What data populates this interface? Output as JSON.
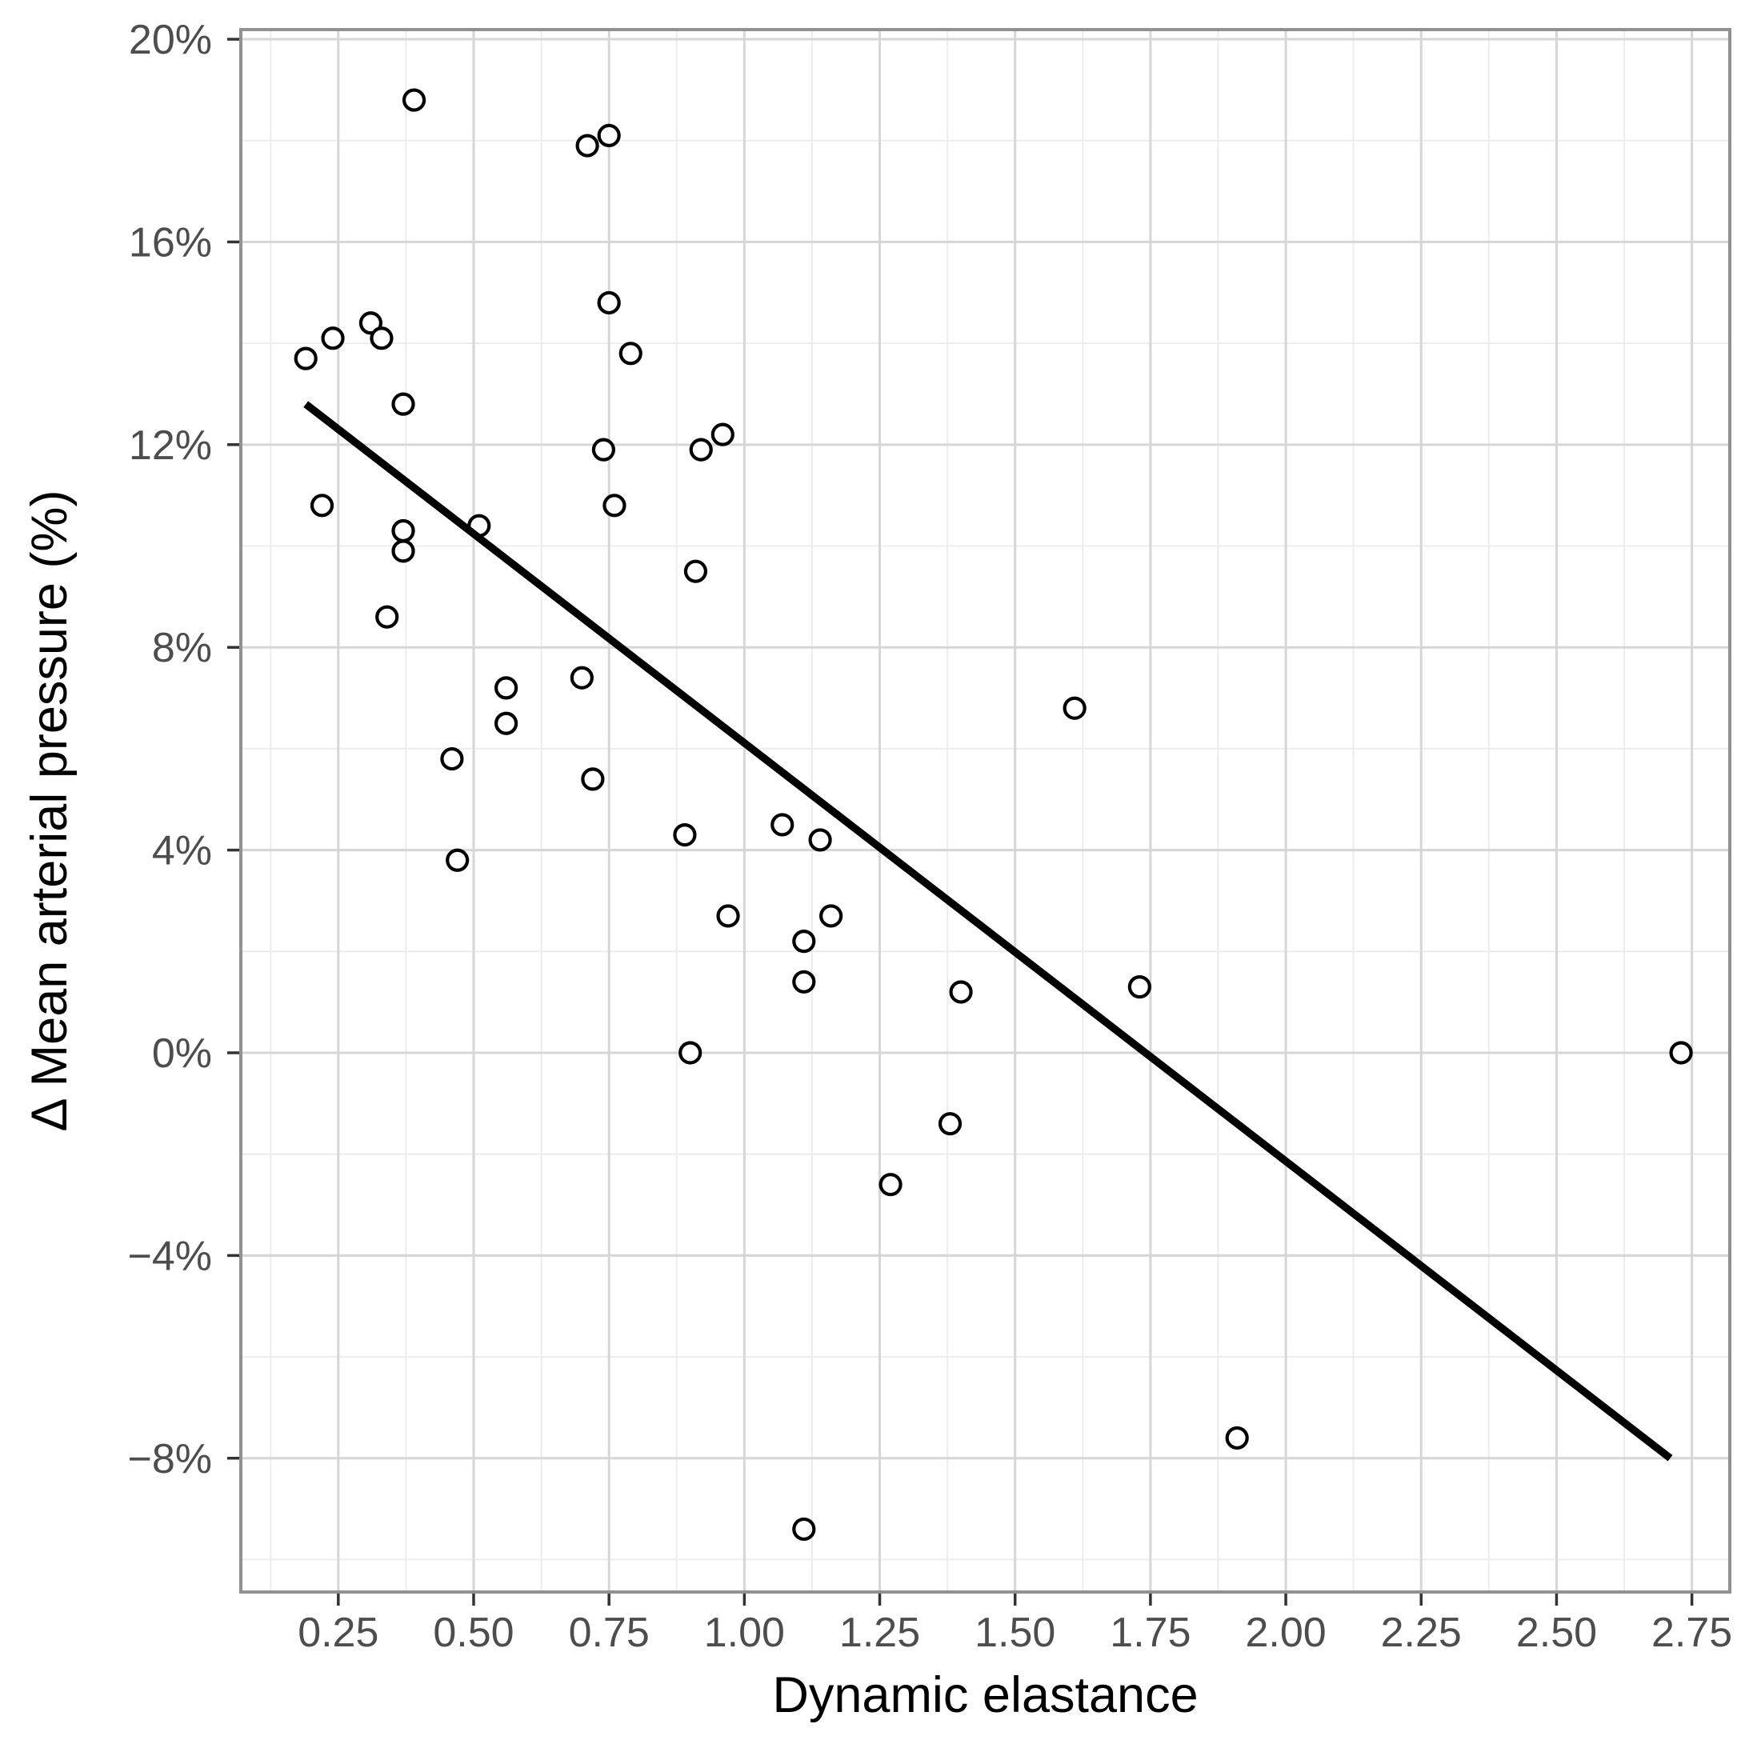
{
  "chart_data": {
    "type": "scatter",
    "title": "",
    "xlabel": "Dynamic elastance",
    "ylabel": "Δ Mean arterial pressure (%)",
    "legend": "none",
    "grid": "major+minor",
    "xlim": [
      0.07,
      2.82
    ],
    "ylim": [
      -10.64,
      20.19
    ],
    "x_ticks": [
      {
        "v": 0.25,
        "label": "0.25"
      },
      {
        "v": 0.5,
        "label": "0.50"
      },
      {
        "v": 0.75,
        "label": "0.75"
      },
      {
        "v": 1.0,
        "label": "1.00"
      },
      {
        "v": 1.25,
        "label": "1.25"
      },
      {
        "v": 1.5,
        "label": "1.50"
      },
      {
        "v": 1.75,
        "label": "1.75"
      },
      {
        "v": 2.0,
        "label": "2.00"
      },
      {
        "v": 2.25,
        "label": "2.25"
      },
      {
        "v": 2.5,
        "label": "2.50"
      },
      {
        "v": 2.75,
        "label": "2.75"
      }
    ],
    "y_ticks": [
      {
        "v": 20,
        "label": "20%"
      },
      {
        "v": 16,
        "label": "16%"
      },
      {
        "v": 12,
        "label": "12%"
      },
      {
        "v": 8,
        "label": "8%"
      },
      {
        "v": 4,
        "label": "4%"
      },
      {
        "v": 0,
        "label": "0%"
      },
      {
        "v": -4,
        "label": "−4%"
      },
      {
        "v": -8,
        "label": "−8%"
      }
    ],
    "x_minor": [
      0.125,
      0.375,
      0.625,
      0.875,
      1.125,
      1.375,
      1.625,
      1.875,
      2.125,
      2.375,
      2.625
    ],
    "y_minor": [
      -10,
      -6,
      -2,
      2,
      6,
      10,
      14,
      18
    ],
    "points": [
      [
        0.39,
        18.8
      ],
      [
        0.71,
        17.9
      ],
      [
        0.75,
        18.1
      ],
      [
        0.75,
        14.8
      ],
      [
        0.79,
        13.8
      ],
      [
        0.31,
        14.4
      ],
      [
        0.33,
        14.1
      ],
      [
        0.24,
        14.1
      ],
      [
        0.19,
        13.7
      ],
      [
        0.37,
        12.8
      ],
      [
        0.74,
        11.9
      ],
      [
        0.92,
        11.9
      ],
      [
        0.96,
        12.2
      ],
      [
        0.76,
        10.8
      ],
      [
        0.22,
        10.8
      ],
      [
        0.37,
        10.3
      ],
      [
        0.51,
        10.4
      ],
      [
        0.37,
        9.9
      ],
      [
        0.91,
        9.5
      ],
      [
        0.34,
        8.6
      ],
      [
        0.56,
        7.2
      ],
      [
        0.7,
        7.4
      ],
      [
        0.56,
        6.5
      ],
      [
        0.46,
        5.8
      ],
      [
        0.72,
        5.4
      ],
      [
        1.61,
        6.8
      ],
      [
        0.47,
        3.8
      ],
      [
        0.89,
        4.3
      ],
      [
        1.07,
        4.5
      ],
      [
        1.14,
        4.2
      ],
      [
        0.97,
        2.7
      ],
      [
        1.16,
        2.7
      ],
      [
        1.11,
        2.2
      ],
      [
        1.11,
        1.4
      ],
      [
        1.4,
        1.2
      ],
      [
        1.73,
        1.3
      ],
      [
        0.9,
        0.0
      ],
      [
        2.73,
        0.0
      ],
      [
        1.38,
        -1.4
      ],
      [
        1.27,
        -2.6
      ],
      [
        1.91,
        -7.6
      ],
      [
        1.11,
        -9.4
      ]
    ],
    "trend_line": {
      "type": "linear",
      "x1": 0.19,
      "y1": 12.8,
      "x2": 2.71,
      "y2": -8.0
    }
  },
  "style": {
    "background": "#ffffff",
    "panel_background": "#ffffff",
    "panel_border": "#919191",
    "grid_major": "#d6d6d6",
    "grid_minor": "#ebebeb",
    "point_stroke": "#000000",
    "point_fill": "#ffffff",
    "trend_color": "#000000",
    "tick_mark_color": "#333333",
    "tick_label_color": "#4d4d4d",
    "title_color": "#000000"
  }
}
